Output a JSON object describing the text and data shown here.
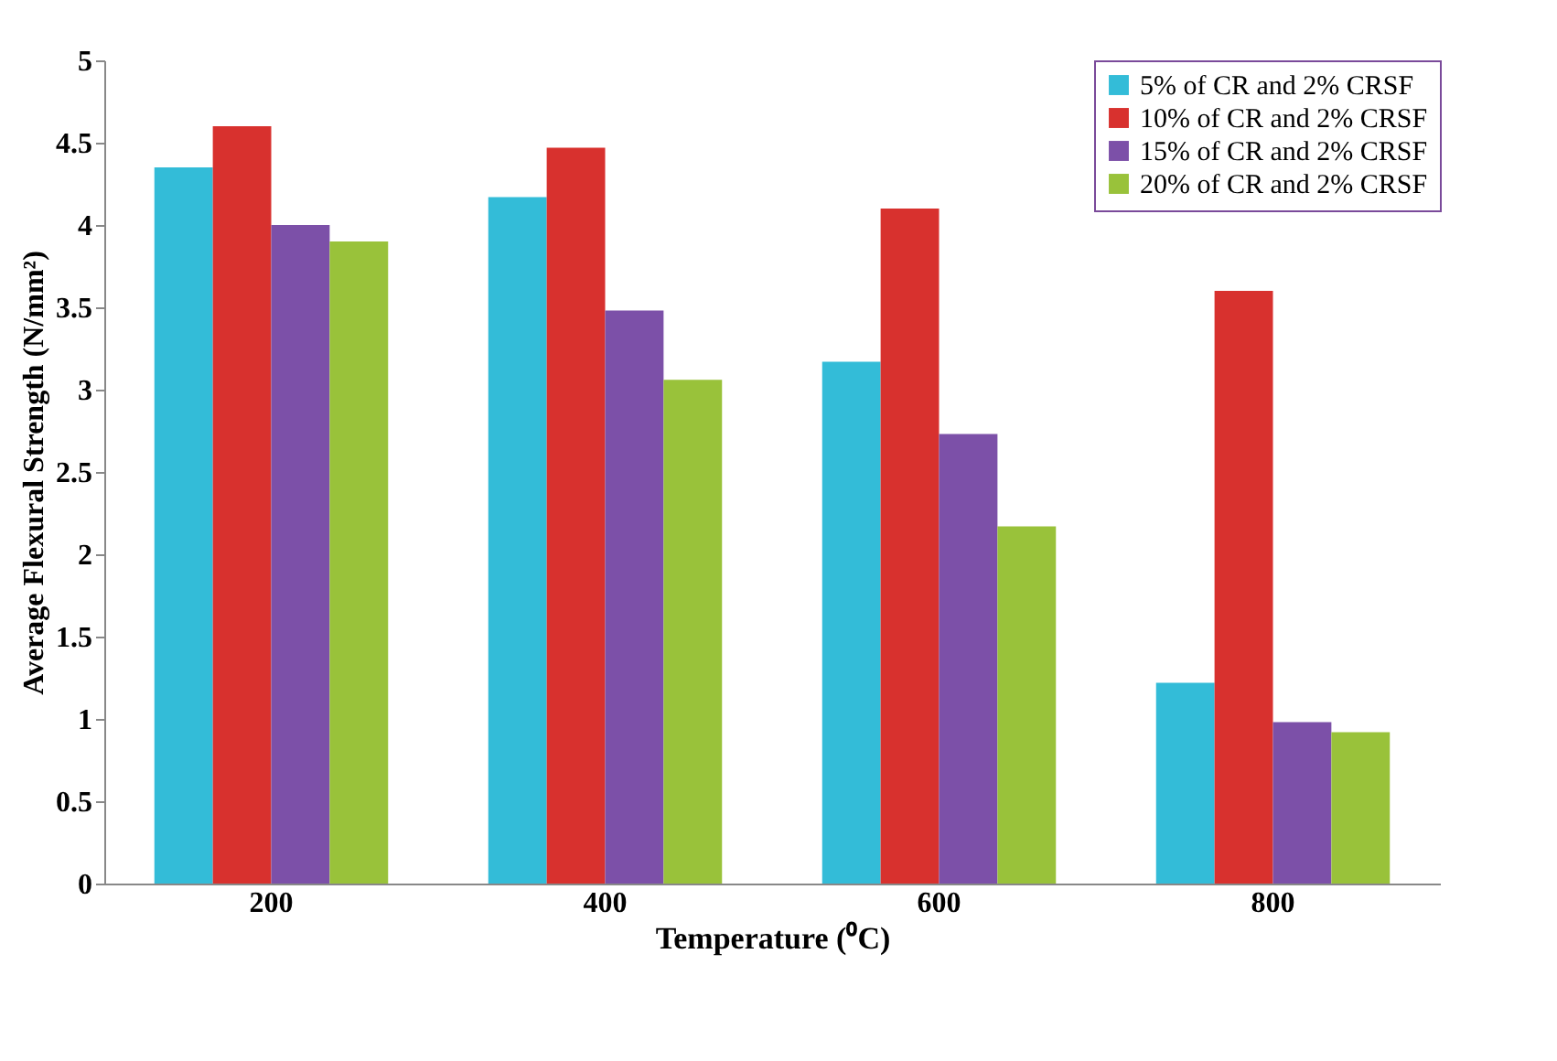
{
  "chart_data": {
    "type": "bar",
    "xlabel": "Temperature (⁰C)",
    "ylabel": "Average Flexural Strength (N/mm²)",
    "categories": [
      "200",
      "400",
      "600",
      "800"
    ],
    "series": [
      {
        "name": "5% of CR and 2% CRSF",
        "color": "#33bcd8",
        "values": [
          4.35,
          4.17,
          3.17,
          1.22
        ]
      },
      {
        "name": "10% of CR and 2% CRSF",
        "color": "#d8312e",
        "values": [
          4.6,
          4.47,
          4.1,
          3.6
        ]
      },
      {
        "name": "15% of CR and 2% CRSF",
        "color": "#7c50a8",
        "values": [
          4.0,
          3.48,
          2.73,
          0.98
        ]
      },
      {
        "name": "20% of CR and 2% CRSF",
        "color": "#99c23a",
        "values": [
          3.9,
          3.06,
          2.17,
          0.92
        ]
      }
    ],
    "ylim": [
      0,
      5
    ],
    "yticks": [
      0,
      0.5,
      1,
      1.5,
      2,
      2.5,
      3,
      3.5,
      4,
      4.5,
      5
    ],
    "grid": false,
    "legend": "top right"
  }
}
